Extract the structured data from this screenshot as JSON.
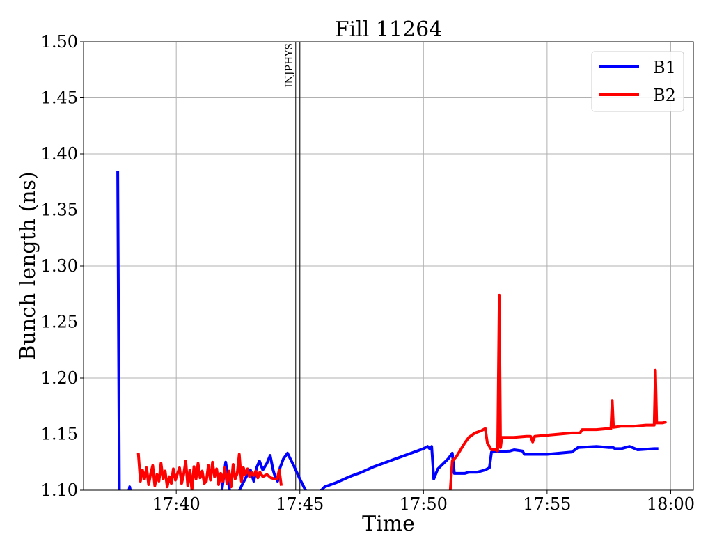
{
  "chart_data": {
    "type": "line",
    "title": "Fill 11264",
    "xlabel": "Time",
    "ylabel": "Bunch length (ns)",
    "x_unit": "time (HH:MM)",
    "xlim": [
      "17:36:15",
      "18:00:55"
    ],
    "ylim": [
      1.1,
      1.5
    ],
    "x_ticks": [
      "17:40",
      "17:45",
      "17:50",
      "17:55",
      "18:00"
    ],
    "y_ticks": [
      "1.10",
      "1.15",
      "1.20",
      "1.25",
      "1.30",
      "1.35",
      "1.40",
      "1.45",
      "1.50"
    ],
    "grid": true,
    "legend_position": "top-right",
    "annotations": [
      {
        "text": "INJPHYS",
        "x": "17:44:55"
      }
    ],
    "series": [
      {
        "name": "B1",
        "color": "#0000ff",
        "points": [
          [
            "17:37:38",
            1.385
          ],
          [
            "17:37:42",
            1.097
          ],
          [
            "17:38:04",
            1.097
          ],
          [
            "17:38:07",
            1.103
          ],
          [
            "17:38:10",
            1.097
          ],
          [
            "17:41:50",
            1.098
          ],
          [
            "17:42:00",
            1.125
          ],
          [
            "17:42:05",
            1.112
          ],
          [
            "17:42:10",
            1.098
          ],
          [
            "17:42:30",
            1.097
          ],
          [
            "17:42:40",
            1.105
          ],
          [
            "17:42:50",
            1.112
          ],
          [
            "17:43:00",
            1.118
          ],
          [
            "17:43:08",
            1.108
          ],
          [
            "17:43:15",
            1.12
          ],
          [
            "17:43:22",
            1.126
          ],
          [
            "17:43:30",
            1.118
          ],
          [
            "17:43:40",
            1.124
          ],
          [
            "17:43:48",
            1.131
          ],
          [
            "17:43:55",
            1.118
          ],
          [
            "17:44:00",
            1.112
          ],
          [
            "17:44:06",
            1.108
          ],
          [
            "17:44:12",
            1.12
          ],
          [
            "17:44:20",
            1.128
          ],
          [
            "17:44:30",
            1.133
          ],
          [
            "17:44:45",
            1.122
          ],
          [
            "17:45:00",
            1.11
          ],
          [
            "17:45:15",
            1.099
          ],
          [
            "17:45:45",
            1.097
          ],
          [
            "17:46:00",
            1.103
          ],
          [
            "17:46:30",
            1.107
          ],
          [
            "17:47:00",
            1.112
          ],
          [
            "17:47:30",
            1.116
          ],
          [
            "17:48:00",
            1.121
          ],
          [
            "17:48:30",
            1.125
          ],
          [
            "17:49:00",
            1.129
          ],
          [
            "17:49:30",
            1.133
          ],
          [
            "17:50:00",
            1.137
          ],
          [
            "17:50:10",
            1.139
          ],
          [
            "17:50:15",
            1.137
          ],
          [
            "17:50:20",
            1.139
          ],
          [
            "17:50:25",
            1.11
          ],
          [
            "17:50:35",
            1.119
          ],
          [
            "17:51:00",
            1.128
          ],
          [
            "17:51:10",
            1.133
          ],
          [
            "17:51:15",
            1.115
          ],
          [
            "17:51:40",
            1.115
          ],
          [
            "17:51:50",
            1.116
          ],
          [
            "17:52:10",
            1.116
          ],
          [
            "17:52:30",
            1.118
          ],
          [
            "17:52:40",
            1.12
          ],
          [
            "17:52:45",
            1.134
          ],
          [
            "17:53:30",
            1.135
          ],
          [
            "17:53:40",
            1.136
          ],
          [
            "17:54:00",
            1.135
          ],
          [
            "17:54:05",
            1.132
          ],
          [
            "17:54:30",
            1.132
          ],
          [
            "17:55:00",
            1.132
          ],
          [
            "17:55:30",
            1.133
          ],
          [
            "17:56:00",
            1.134
          ],
          [
            "17:56:15",
            1.138
          ],
          [
            "17:57:00",
            1.139
          ],
          [
            "17:57:30",
            1.138
          ],
          [
            "17:57:40",
            1.138
          ],
          [
            "17:57:45",
            1.137
          ],
          [
            "17:58:00",
            1.137
          ],
          [
            "17:58:20",
            1.139
          ],
          [
            "17:58:40",
            1.136
          ],
          [
            "17:59:20",
            1.137
          ],
          [
            "17:59:30",
            1.137
          ]
        ]
      },
      {
        "name": "B2",
        "color": "#ff0000",
        "points": [
          [
            "17:38:28",
            1.133
          ],
          [
            "17:38:33",
            1.108
          ],
          [
            "17:38:38",
            1.118
          ],
          [
            "17:38:43",
            1.11
          ],
          [
            "17:38:48",
            1.12
          ],
          [
            "17:38:53",
            1.105
          ],
          [
            "17:38:58",
            1.115
          ],
          [
            "17:39:03",
            1.122
          ],
          [
            "17:39:08",
            1.104
          ],
          [
            "17:39:13",
            1.114
          ],
          [
            "17:39:18",
            1.108
          ],
          [
            "17:39:23",
            1.124
          ],
          [
            "17:39:28",
            1.11
          ],
          [
            "17:39:33",
            1.117
          ],
          [
            "17:39:38",
            1.103
          ],
          [
            "17:39:43",
            1.112
          ],
          [
            "17:39:48",
            1.106
          ],
          [
            "17:39:53",
            1.119
          ],
          [
            "17:39:58",
            1.109
          ],
          [
            "17:40:03",
            1.115
          ],
          [
            "17:40:08",
            1.12
          ],
          [
            "17:40:13",
            1.106
          ],
          [
            "17:40:18",
            1.114
          ],
          [
            "17:40:23",
            1.126
          ],
          [
            "17:40:28",
            1.104
          ],
          [
            "17:40:33",
            1.118
          ],
          [
            "17:40:38",
            1.1
          ],
          [
            "17:40:43",
            1.121
          ],
          [
            "17:40:48",
            1.11
          ],
          [
            "17:40:53",
            1.124
          ],
          [
            "17:40:58",
            1.111
          ],
          [
            "17:41:03",
            1.117
          ],
          [
            "17:41:08",
            1.106
          ],
          [
            "17:41:13",
            1.108
          ],
          [
            "17:41:18",
            1.122
          ],
          [
            "17:41:23",
            1.109
          ],
          [
            "17:41:28",
            1.125
          ],
          [
            "17:41:33",
            1.112
          ],
          [
            "17:41:38",
            1.119
          ],
          [
            "17:41:43",
            1.105
          ],
          [
            "17:41:48",
            1.115
          ],
          [
            "17:41:53",
            1.108
          ],
          [
            "17:41:58",
            1.12
          ],
          [
            "17:42:03",
            1.106
          ],
          [
            "17:42:08",
            1.117
          ],
          [
            "17:42:13",
            1.103
          ],
          [
            "17:42:18",
            1.123
          ],
          [
            "17:42:23",
            1.11
          ],
          [
            "17:42:28",
            1.115
          ],
          [
            "17:42:33",
            1.132
          ],
          [
            "17:42:38",
            1.108
          ],
          [
            "17:42:43",
            1.12
          ],
          [
            "17:42:48",
            1.114
          ],
          [
            "17:42:53",
            1.119
          ],
          [
            "17:42:58",
            1.112
          ],
          [
            "17:43:03",
            1.116
          ],
          [
            "17:43:08",
            1.113
          ],
          [
            "17:43:13",
            1.117
          ],
          [
            "17:43:18",
            1.111
          ],
          [
            "17:43:23",
            1.116
          ],
          [
            "17:43:30",
            1.112
          ],
          [
            "17:43:40",
            1.114
          ],
          [
            "17:43:50",
            1.111
          ],
          [
            "17:44:00",
            1.11
          ],
          [
            "17:44:05",
            1.11
          ],
          [
            "17:44:10",
            1.118
          ],
          [
            "17:44:15",
            1.104
          ]
        ],
        "points_2": [
          [
            "17:51:05",
            1.1
          ],
          [
            "17:51:10",
            1.126
          ],
          [
            "17:51:20",
            1.13
          ],
          [
            "17:51:30",
            1.136
          ],
          [
            "17:51:40",
            1.142
          ],
          [
            "17:51:50",
            1.147
          ],
          [
            "17:52:05",
            1.151
          ],
          [
            "17:52:20",
            1.153
          ],
          [
            "17:52:30",
            1.155
          ],
          [
            "17:52:35",
            1.142
          ],
          [
            "17:52:45",
            1.136
          ],
          [
            "17:52:55",
            1.136
          ],
          [
            "17:53:00",
            1.135
          ],
          [
            "17:53:04",
            1.274
          ],
          [
            "17:53:07",
            1.138
          ],
          [
            "17:53:10",
            1.147
          ],
          [
            "17:53:40",
            1.147
          ],
          [
            "17:54:10",
            1.148
          ],
          [
            "17:54:20",
            1.148
          ],
          [
            "17:54:25",
            1.143
          ],
          [
            "17:54:30",
            1.148
          ],
          [
            "17:55:00",
            1.149
          ],
          [
            "17:55:30",
            1.15
          ],
          [
            "17:56:00",
            1.151
          ],
          [
            "17:56:20",
            1.151
          ],
          [
            "17:56:25",
            1.154
          ],
          [
            "17:57:00",
            1.154
          ],
          [
            "17:57:30",
            1.155
          ],
          [
            "17:57:35",
            1.155
          ],
          [
            "17:57:38",
            1.18
          ],
          [
            "17:57:41",
            1.156
          ],
          [
            "17:58:00",
            1.157
          ],
          [
            "17:58:30",
            1.157
          ],
          [
            "17:59:00",
            1.158
          ],
          [
            "17:59:20",
            1.158
          ],
          [
            "17:59:23",
            1.207
          ],
          [
            "17:59:26",
            1.16
          ],
          [
            "17:59:40",
            1.16
          ],
          [
            "17:59:50",
            1.161
          ]
        ]
      }
    ]
  }
}
